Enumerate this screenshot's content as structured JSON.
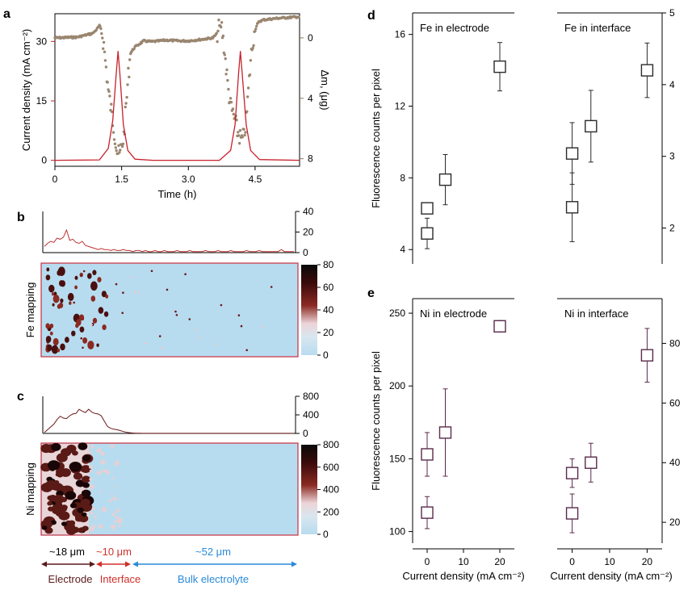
{
  "colors": {
    "current": "#c8202a",
    "mass": "#9a8670",
    "axis_left_a": "#c8202a",
    "axis_right_a": "#8a7560",
    "marker_d": "#6a3a5a",
    "marker_e": "#5a2a4a",
    "ticks_right": "#1f1f1f",
    "trace": "#c03030",
    "electrode": "#5a1a1a",
    "interface": "#d0302a",
    "bulk": "#2a8ad8",
    "map_bg": "#b8dcef",
    "map_border": "#c83040"
  },
  "panels": {
    "a": "a",
    "b": "b",
    "c": "c",
    "d": "d",
    "e": "e"
  },
  "chart_data": [
    {
      "id": "a",
      "type": "line",
      "xlabel": "Time (h)",
      "ylabel_left": "Current density (mA cm⁻²)",
      "ylabel_right": "Δm, (μg)",
      "xlim": [
        0,
        5.5
      ],
      "xticks": [
        "0",
        "1.5",
        "3.0",
        "4.5"
      ],
      "xtick_values": [
        0,
        1.5,
        3.0,
        4.5
      ],
      "ylim_left": [
        -1.5,
        37
      ],
      "yticks_left": [
        "0",
        "15",
        "30"
      ],
      "ytick_values_left": [
        0,
        15,
        30
      ],
      "ylim_right": [
        8.5,
        -1.6
      ],
      "yticks_right": [
        "0",
        "4",
        "8"
      ],
      "ytick_values_right": [
        0,
        4,
        8
      ],
      "series": [
        {
          "axis": "left",
          "style": "line",
          "x": [
            0,
            1.0,
            1.2,
            1.3,
            1.38,
            1.42,
            1.46,
            1.54,
            1.64,
            1.8,
            2.2,
            3.7,
            3.95,
            4.05,
            4.13,
            4.17,
            4.21,
            4.3,
            4.4,
            4.6,
            5.5
          ],
          "y": [
            0,
            0.1,
            3,
            10,
            22,
            27.5,
            22,
            9,
            2.5,
            0.3,
            0,
            0,
            2.5,
            9,
            22,
            27.5,
            22,
            9,
            2.5,
            0.2,
            0
          ]
        },
        {
          "axis": "right",
          "style": "dots",
          "x": [
            0,
            0.5,
            0.85,
            0.95,
            1.0,
            1.05,
            1.1,
            1.15,
            1.2,
            1.25,
            1.3,
            1.35,
            1.4,
            1.45,
            1.5,
            1.55,
            1.6,
            1.65,
            1.7,
            1.8,
            1.9,
            2.0,
            2.2,
            2.5,
            2.8,
            3.0,
            3.3,
            3.55,
            3.65,
            3.7,
            3.75,
            3.8,
            3.85,
            3.9,
            3.95,
            4.0,
            4.05,
            4.1,
            4.15,
            4.2,
            4.25,
            4.3,
            4.35,
            4.4,
            4.45,
            4.5,
            4.55,
            4.6,
            4.7,
            5.0,
            5.5
          ],
          "y": [
            0,
            -0.05,
            -0.3,
            -0.6,
            -0.8,
            -0.5,
            0.5,
            2,
            3.5,
            4.5,
            5.5,
            6.5,
            7.5,
            7.8,
            7.2,
            6.5,
            4.5,
            2.5,
            1.0,
            0.6,
            0.4,
            0.2,
            0.25,
            0.15,
            0.2,
            0.2,
            0.1,
            0.0,
            -0.3,
            -0.8,
            -0.7,
            0.5,
            2.0,
            3.5,
            4.5,
            5.0,
            5.5,
            6.2,
            6.5,
            6.8,
            6.5,
            5.5,
            3.5,
            1.5,
            0.2,
            -0.5,
            -0.9,
            -1.1,
            -1.2,
            -1.3,
            -1.4
          ]
        }
      ]
    },
    {
      "id": "b",
      "type": "line",
      "ylim": [
        0,
        40
      ],
      "yticks": [
        "0",
        "20",
        "40"
      ],
      "ytick_values": [
        0,
        20,
        40
      ],
      "values": [
        6,
        9,
        11,
        10,
        14,
        13,
        15,
        22,
        12,
        13,
        10,
        9,
        11,
        7,
        6,
        5,
        4,
        3,
        4,
        3,
        3,
        2,
        3,
        2,
        2,
        3,
        2,
        2,
        1,
        2,
        2,
        1,
        2,
        1,
        1,
        2,
        1,
        1,
        2,
        1,
        1,
        1,
        2,
        1,
        1,
        1,
        2,
        1,
        1,
        1,
        1,
        2,
        1,
        1,
        1,
        2,
        1,
        1,
        1,
        2,
        1,
        1,
        1,
        1,
        2,
        1,
        1,
        1,
        2,
        1,
        1,
        1,
        1,
        1,
        1,
        3,
        1,
        1,
        1,
        1
      ]
    },
    {
      "id": "b-map",
      "type": "heatmap",
      "ylabel": "Fe mapping",
      "clim": [
        0,
        80
      ],
      "colorbar_ticks": [
        "0",
        "20",
        "40",
        "60",
        "80"
      ],
      "colorbar_values": [
        0,
        20,
        40,
        60,
        80
      ]
    },
    {
      "id": "c",
      "type": "line",
      "ylim": [
        0,
        800
      ],
      "yticks": [
        "0",
        "400",
        "800"
      ],
      "ytick_values": [
        0,
        400,
        800
      ],
      "values": [
        20,
        80,
        140,
        200,
        300,
        370,
        330,
        320,
        380,
        420,
        430,
        520,
        480,
        450,
        520,
        460,
        430,
        420,
        380,
        260,
        150,
        110,
        90,
        80,
        60,
        40,
        25,
        15,
        8,
        5,
        3,
        2,
        2,
        1,
        1,
        1,
        1,
        1,
        1,
        1,
        1,
        1,
        1,
        1,
        1,
        1,
        1,
        1,
        1,
        1,
        1,
        1,
        1,
        1,
        1,
        1,
        1,
        1,
        1,
        1,
        1,
        1,
        1,
        1,
        1,
        1,
        1,
        1,
        1,
        1,
        1,
        1,
        1,
        1,
        1,
        1,
        1,
        1,
        1,
        1
      ]
    },
    {
      "id": "c-map",
      "type": "heatmap",
      "ylabel": "Ni mapping",
      "clim": [
        0,
        800
      ],
      "colorbar_ticks": [
        "0",
        "200",
        "400",
        "600",
        "800"
      ],
      "colorbar_values": [
        0,
        200,
        400,
        600,
        800
      ]
    },
    {
      "id": "d",
      "type": "scatter",
      "ylabel": "Fluorescence counts per pixel",
      "left": {
        "title": "Fe in electrode",
        "ylim": [
          3.2,
          17.2
        ],
        "yticks": [
          "4",
          "8",
          "12",
          "16"
        ],
        "ytick_values": [
          4,
          8,
          12,
          16
        ],
        "x": [
          0,
          0,
          5,
          20
        ],
        "y": [
          4.9,
          6.3,
          7.9,
          14.2
        ],
        "err": [
          0.85,
          0.15,
          1.4,
          1.35
        ]
      },
      "right": {
        "title": "Fe in interface",
        "ylim": [
          1.5,
          5.0
        ],
        "yticks": [
          "2",
          "3",
          "4",
          "5"
        ],
        "ytick_values": [
          2,
          3,
          4,
          5
        ],
        "x": [
          0,
          0,
          5,
          20
        ],
        "y": [
          2.29,
          3.04,
          3.42,
          4.2
        ],
        "err": [
          0.48,
          0.43,
          0.5,
          0.38
        ]
      }
    },
    {
      "id": "e",
      "type": "scatter",
      "ylabel": "Fluorescence counts per pixel",
      "xlabel": "Current density (mA cm⁻²)",
      "xticks": [
        "0",
        "10",
        "20"
      ],
      "xtick_values": [
        0,
        10,
        20
      ],
      "xlim": [
        -4,
        24
      ],
      "left": {
        "title": "Ni in electrode",
        "ylim": [
          92,
          260
        ],
        "yticks": [
          "100",
          "150",
          "200",
          "250"
        ],
        "ytick_values": [
          100,
          150,
          200,
          250
        ],
        "x": [
          0,
          0,
          5,
          20
        ],
        "y": [
          113,
          153,
          168,
          241
        ],
        "err": [
          11,
          15,
          30,
          4
        ]
      },
      "right": {
        "title": "Ni in interface",
        "ylim": [
          13,
          95
        ],
        "yticks": [
          "20",
          "40",
          "60",
          "80"
        ],
        "ytick_values": [
          20,
          40,
          60,
          80
        ],
        "x": [
          0,
          0,
          5,
          20
        ],
        "y": [
          23,
          36.5,
          40,
          76
        ],
        "err": [
          6.5,
          4.8,
          6.5,
          9
        ]
      }
    }
  ],
  "regions": {
    "electrode": {
      "size": "~18 μm",
      "label": "Electrode"
    },
    "interface": {
      "size": "~10 μm",
      "label": "Interface"
    },
    "bulk": {
      "size": "~52 μm",
      "label": "Bulk electrolyte"
    }
  }
}
